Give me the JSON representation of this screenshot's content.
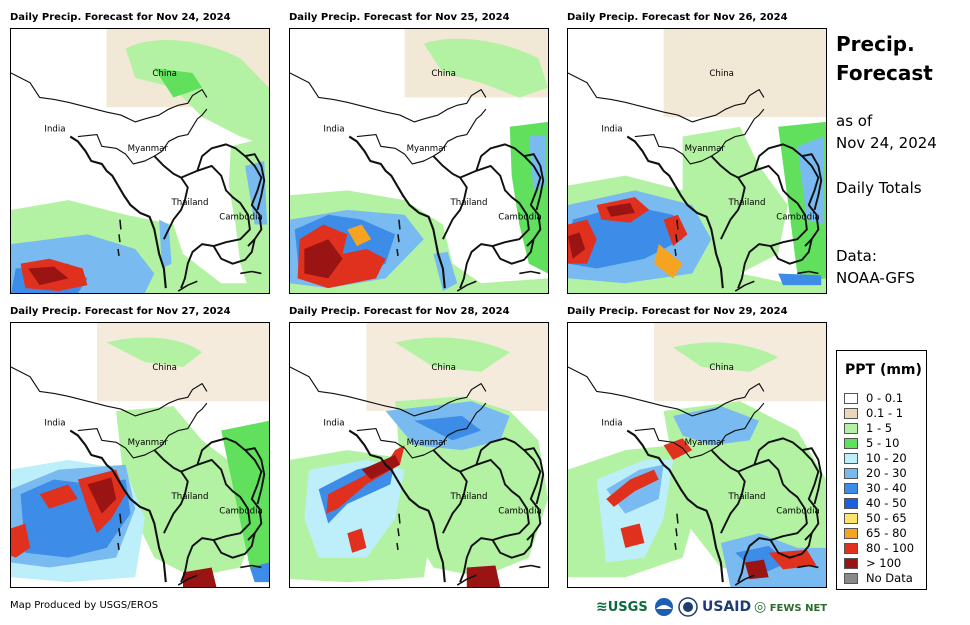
{
  "panels": [
    {
      "title": "Daily Precip. Forecast for Nov 24, 2024"
    },
    {
      "title": "Daily Precip. Forecast for Nov 25, 2024"
    },
    {
      "title": "Daily Precip. Forecast for Nov 26, 2024"
    },
    {
      "title": "Daily Precip. Forecast for Nov 27, 2024"
    },
    {
      "title": "Daily Precip. Forecast for Nov 28, 2024"
    },
    {
      "title": "Daily Precip. Forecast for Nov 29, 2024"
    }
  ],
  "map_labels": {
    "china": "China",
    "india": "India",
    "myanmar": "Myanmar",
    "thailand": "Thailand",
    "cambodia": "Cambodia"
  },
  "side": {
    "title_line1": "Precip.",
    "title_line2": "Forecast",
    "asof_line1": "as of",
    "asof_line2": "Nov 24, 2024",
    "totals": "Daily Totals",
    "data_label": "Data:",
    "data_source": "NOAA-GFS"
  },
  "legend": {
    "title": "PPT (mm)",
    "items": [
      {
        "label": "0 - 0.1",
        "color": "#ffffff"
      },
      {
        "label": "0.1 - 1",
        "color": "#ead8bb"
      },
      {
        "label": "1 - 5",
        "color": "#b3f2a2"
      },
      {
        "label": "5 - 10",
        "color": "#61e05e"
      },
      {
        "label": "10 - 20",
        "color": "#bdeffa"
      },
      {
        "label": "20 - 30",
        "color": "#79bbf0"
      },
      {
        "label": "30 - 40",
        "color": "#3d8ce8"
      },
      {
        "label": "40 - 50",
        "color": "#1a5fe0"
      },
      {
        "label": "50 - 65",
        "color": "#fde26b"
      },
      {
        "label": "65 - 80",
        "color": "#f5a320"
      },
      {
        "label": "80 - 100",
        "color": "#e0301e"
      },
      {
        "label": "> 100",
        "color": "#9a1414"
      },
      {
        "label": "No Data",
        "color": "#8a8a8a"
      }
    ]
  },
  "footer": {
    "credit": "Map Produced by USGS/EROS"
  },
  "logos": {
    "usgs": "USGS",
    "usaid": "USAID",
    "fewsnet": "FEWS NET"
  }
}
